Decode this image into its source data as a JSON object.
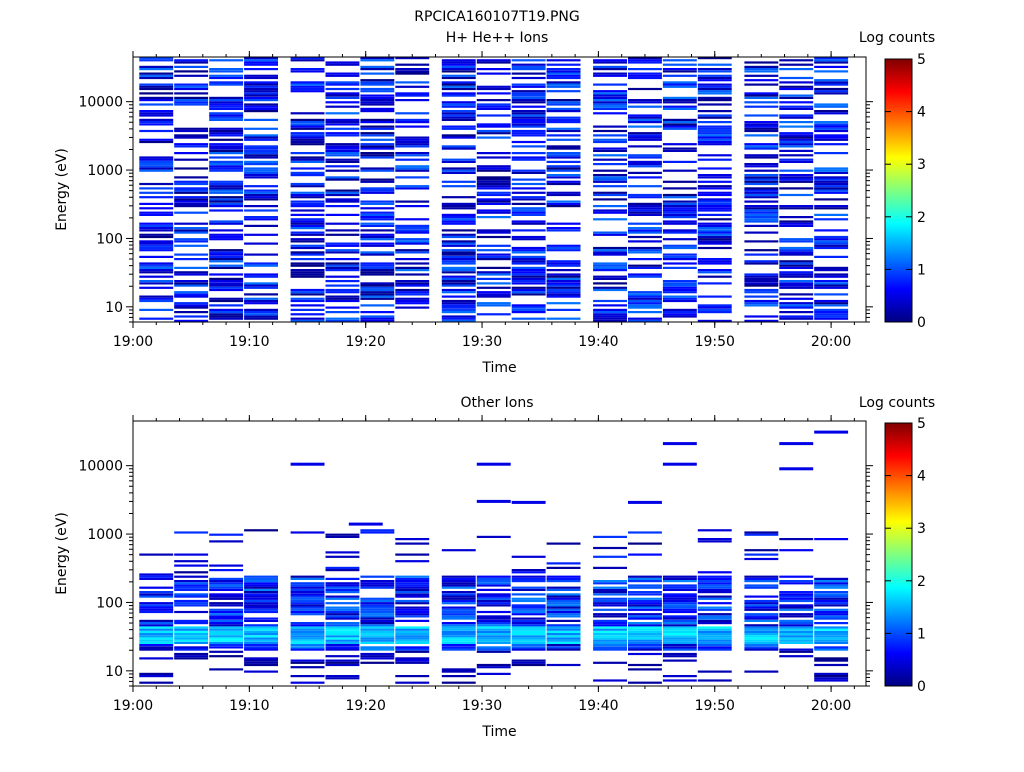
{
  "page_title": "RPCICA160107T19.PNG",
  "chart_data": [
    {
      "type": "heatmap",
      "title": "H+ He++ Ions",
      "xlabel": "Time",
      "ylabel": "Energy (eV)",
      "x_ticks": [
        "19:00",
        "19:10",
        "19:20",
        "19:30",
        "19:40",
        "19:50",
        "20:00"
      ],
      "y_scale": "log",
      "y_ticks": [
        "10",
        "100",
        "1000",
        "10000"
      ],
      "xlim": [
        "19:00",
        "20:03"
      ],
      "ylim": [
        6,
        45000
      ],
      "colorbar": {
        "label": "Log counts",
        "ticks": [
          "0",
          "1",
          "2",
          "3",
          "4",
          "5"
        ],
        "range": [
          0,
          5
        ]
      },
      "time_bins": [
        "19:02",
        "19:05",
        "19:08",
        "19:11",
        "19:15",
        "19:18",
        "19:21",
        "19:24",
        "19:28",
        "19:31",
        "19:34",
        "19:37",
        "19:41",
        "19:44",
        "19:47",
        "19:50",
        "19:54",
        "19:57",
        "20:00"
      ],
      "energy_range_ev": [
        6,
        45000
      ],
      "fill_density": 0.55,
      "value_range": [
        0,
        1.2
      ]
    },
    {
      "type": "heatmap",
      "title": "Other Ions",
      "xlabel": "Time",
      "ylabel": "Energy (eV)",
      "x_ticks": [
        "19:00",
        "19:10",
        "19:20",
        "19:30",
        "19:40",
        "19:50",
        "20:00"
      ],
      "y_scale": "log",
      "y_ticks": [
        "10",
        "100",
        "1000",
        "10000"
      ],
      "xlim": [
        "19:00",
        "20:03"
      ],
      "ylim": [
        6,
        45000
      ],
      "colorbar": {
        "label": "Log counts",
        "ticks": [
          "0",
          "1",
          "2",
          "3",
          "4",
          "5"
        ],
        "range": [
          0,
          5
        ]
      },
      "time_bins": [
        "19:02",
        "19:05",
        "19:08",
        "19:11",
        "19:15",
        "19:18",
        "19:21",
        "19:24",
        "19:28",
        "19:31",
        "19:34",
        "19:37",
        "19:41",
        "19:44",
        "19:47",
        "19:50",
        "19:54",
        "19:57",
        "20:00"
      ],
      "dense_band_ev": [
        20,
        250
      ],
      "peak_band_ev": [
        25,
        45
      ],
      "peak_value": 1.9,
      "sparse_lines": [
        {
          "time": "19:15",
          "energy": 10500
        },
        {
          "time": "19:20",
          "energy": 1400
        },
        {
          "time": "19:31",
          "energy": 10500
        },
        {
          "time": "19:31",
          "energy": 3000
        },
        {
          "time": "19:34",
          "energy": 2900
        },
        {
          "time": "19:44",
          "energy": 2900
        },
        {
          "time": "19:47",
          "energy": 21000
        },
        {
          "time": "19:47",
          "energy": 10500
        },
        {
          "time": "19:57",
          "energy": 21000
        },
        {
          "time": "19:57",
          "energy": 9000
        },
        {
          "time": "20:00",
          "energy": 31000
        }
      ]
    }
  ]
}
